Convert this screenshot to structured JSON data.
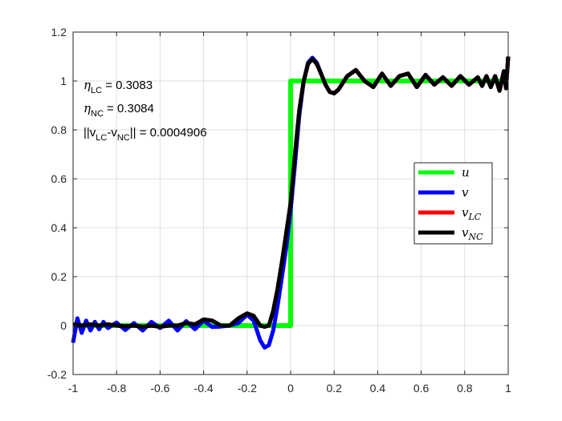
{
  "chart_data": {
    "type": "line",
    "xlim": [
      -1,
      1
    ],
    "ylim": [
      -0.2,
      1.2
    ],
    "x_ticks": [
      "-1",
      "-0.8",
      "-0.6",
      "-0.4",
      "-0.2",
      "0",
      "0.2",
      "0.4",
      "0.6",
      "0.8",
      "1"
    ],
    "y_ticks": [
      "-0.2",
      "0",
      "0.2",
      "0.4",
      "0.6",
      "0.8",
      "1",
      "1.2"
    ],
    "grid": true,
    "legend_position": "right",
    "annotations": [
      {
        "name": "eta-lc",
        "symbol": "η",
        "sub": "LC",
        "rest": " = 0.3083"
      },
      {
        "name": "eta-nc",
        "symbol": "η",
        "sub": "NC",
        "rest": " = 0.3084"
      },
      {
        "name": "norm-diff",
        "parts": [
          "||v",
          "LC",
          "-v",
          "NC",
          "|| = 0.0004906"
        ]
      }
    ],
    "series": [
      {
        "name": "u",
        "sub": "",
        "color": "#00ff00",
        "x": [
          -1,
          0,
          0,
          1
        ],
        "y": [
          0,
          0,
          1,
          1
        ]
      },
      {
        "name": "v",
        "sub": "",
        "color": "#0000ff",
        "x": [
          -1,
          -0.98,
          -0.96,
          -0.94,
          -0.92,
          -0.9,
          -0.88,
          -0.86,
          -0.84,
          -0.8,
          -0.76,
          -0.72,
          -0.68,
          -0.64,
          -0.6,
          -0.56,
          -0.52,
          -0.48,
          -0.44,
          -0.4,
          -0.36,
          -0.32,
          -0.28,
          -0.24,
          -0.2,
          -0.17,
          -0.14,
          -0.12,
          -0.1,
          -0.08,
          -0.06,
          -0.04,
          -0.02,
          0,
          0.02,
          0.04,
          0.06,
          0.08,
          0.1,
          0.12,
          0.14,
          0.16,
          0.18,
          0.2,
          0.22,
          0.26,
          0.3,
          0.34,
          0.38,
          0.42,
          0.46,
          0.5,
          0.54,
          0.58,
          0.62,
          0.66,
          0.7,
          0.74,
          0.78,
          0.82,
          0.86,
          0.88,
          0.9,
          0.92,
          0.94,
          0.96,
          0.98,
          0.99,
          1
        ],
        "y": [
          -0.07,
          0.03,
          -0.03,
          0.02,
          -0.02,
          0.015,
          -0.015,
          0.015,
          -0.01,
          0.012,
          -0.018,
          0.01,
          -0.02,
          0.015,
          -0.01,
          0.02,
          -0.02,
          0.018,
          -0.015,
          0.02,
          -0.006,
          -0.004,
          0.0,
          0.01,
          0.045,
          0.02,
          -0.06,
          -0.09,
          -0.08,
          -0.02,
          0.08,
          0.2,
          0.32,
          0.47,
          0.66,
          0.86,
          1.0,
          1.075,
          1.095,
          1.075,
          1.03,
          0.985,
          0.955,
          0.95,
          0.965,
          1.02,
          1.045,
          1.0,
          0.975,
          1.03,
          0.98,
          1.02,
          1.03,
          0.975,
          1.025,
          0.985,
          1.015,
          0.98,
          1.02,
          0.985,
          1.015,
          0.98,
          1.02,
          0.975,
          1.02,
          0.96,
          1.04,
          0.97,
          1.1
        ]
      },
      {
        "name": "v",
        "sub": "LC",
        "color": "#ff0000",
        "x": [
          -1,
          -0.96,
          -0.92,
          -0.88,
          -0.84,
          -0.8,
          -0.76,
          -0.72,
          -0.68,
          -0.64,
          -0.6,
          -0.56,
          -0.52,
          -0.48,
          -0.44,
          -0.4,
          -0.36,
          -0.32,
          -0.28,
          -0.24,
          -0.2,
          -0.17,
          -0.14,
          -0.12,
          -0.1,
          -0.08,
          -0.06,
          -0.04,
          -0.02,
          0,
          0.02,
          0.04,
          0.06,
          0.08,
          0.1,
          0.12,
          0.14,
          0.16,
          0.18,
          0.2,
          0.22,
          0.26,
          0.3,
          0.34,
          0.38,
          0.42,
          0.46,
          0.5,
          0.54,
          0.58,
          0.62,
          0.66,
          0.7,
          0.74,
          0.78,
          0.82,
          0.86,
          0.88,
          0.9,
          0.92,
          0.94,
          0.96,
          0.98,
          0.99,
          1
        ],
        "y": [
          0.005,
          0.0,
          0.005,
          0.0,
          0.005,
          0.0,
          -0.003,
          0.0,
          -0.005,
          0.0,
          -0.005,
          0.0,
          0.0,
          0.01,
          0.005,
          0.025,
          0.02,
          0.0,
          0.0,
          0.03,
          0.05,
          0.04,
          0.0,
          -0.005,
          0.0,
          0.06,
          0.15,
          0.26,
          0.38,
          0.5,
          0.7,
          0.88,
          1.0,
          1.07,
          1.09,
          1.07,
          1.03,
          0.985,
          0.955,
          0.95,
          0.965,
          1.02,
          1.045,
          1.0,
          0.975,
          1.03,
          0.98,
          1.02,
          1.03,
          0.975,
          1.025,
          0.985,
          1.015,
          0.98,
          1.02,
          0.985,
          1.015,
          0.98,
          1.02,
          0.975,
          1.02,
          0.96,
          1.04,
          0.97,
          1.1
        ]
      },
      {
        "name": "v",
        "sub": "NC",
        "color": "#000000",
        "x": [
          -1,
          -0.96,
          -0.92,
          -0.88,
          -0.84,
          -0.8,
          -0.76,
          -0.72,
          -0.68,
          -0.64,
          -0.6,
          -0.56,
          -0.52,
          -0.48,
          -0.44,
          -0.4,
          -0.36,
          -0.32,
          -0.28,
          -0.24,
          -0.2,
          -0.17,
          -0.14,
          -0.12,
          -0.1,
          -0.08,
          -0.06,
          -0.04,
          -0.02,
          0,
          0.02,
          0.04,
          0.06,
          0.08,
          0.1,
          0.12,
          0.14,
          0.16,
          0.18,
          0.2,
          0.22,
          0.26,
          0.3,
          0.34,
          0.38,
          0.42,
          0.46,
          0.5,
          0.54,
          0.58,
          0.62,
          0.66,
          0.7,
          0.74,
          0.78,
          0.82,
          0.86,
          0.88,
          0.9,
          0.92,
          0.94,
          0.96,
          0.98,
          0.99,
          1
        ],
        "y": [
          0.005,
          0.0,
          0.005,
          0.0,
          0.005,
          0.0,
          -0.003,
          0.0,
          -0.005,
          0.0,
          -0.005,
          0.0,
          0.0,
          0.01,
          0.005,
          0.025,
          0.02,
          0.0,
          0.0,
          0.03,
          0.05,
          0.04,
          0.0,
          -0.005,
          0.0,
          0.06,
          0.15,
          0.26,
          0.38,
          0.5,
          0.7,
          0.88,
          1.0,
          1.07,
          1.09,
          1.07,
          1.03,
          0.985,
          0.955,
          0.95,
          0.965,
          1.02,
          1.045,
          1.0,
          0.975,
          1.03,
          0.98,
          1.02,
          1.03,
          0.975,
          1.025,
          0.985,
          1.015,
          0.98,
          1.02,
          0.985,
          1.015,
          0.98,
          1.02,
          0.975,
          1.02,
          0.96,
          1.04,
          0.97,
          1.1
        ]
      }
    ]
  }
}
